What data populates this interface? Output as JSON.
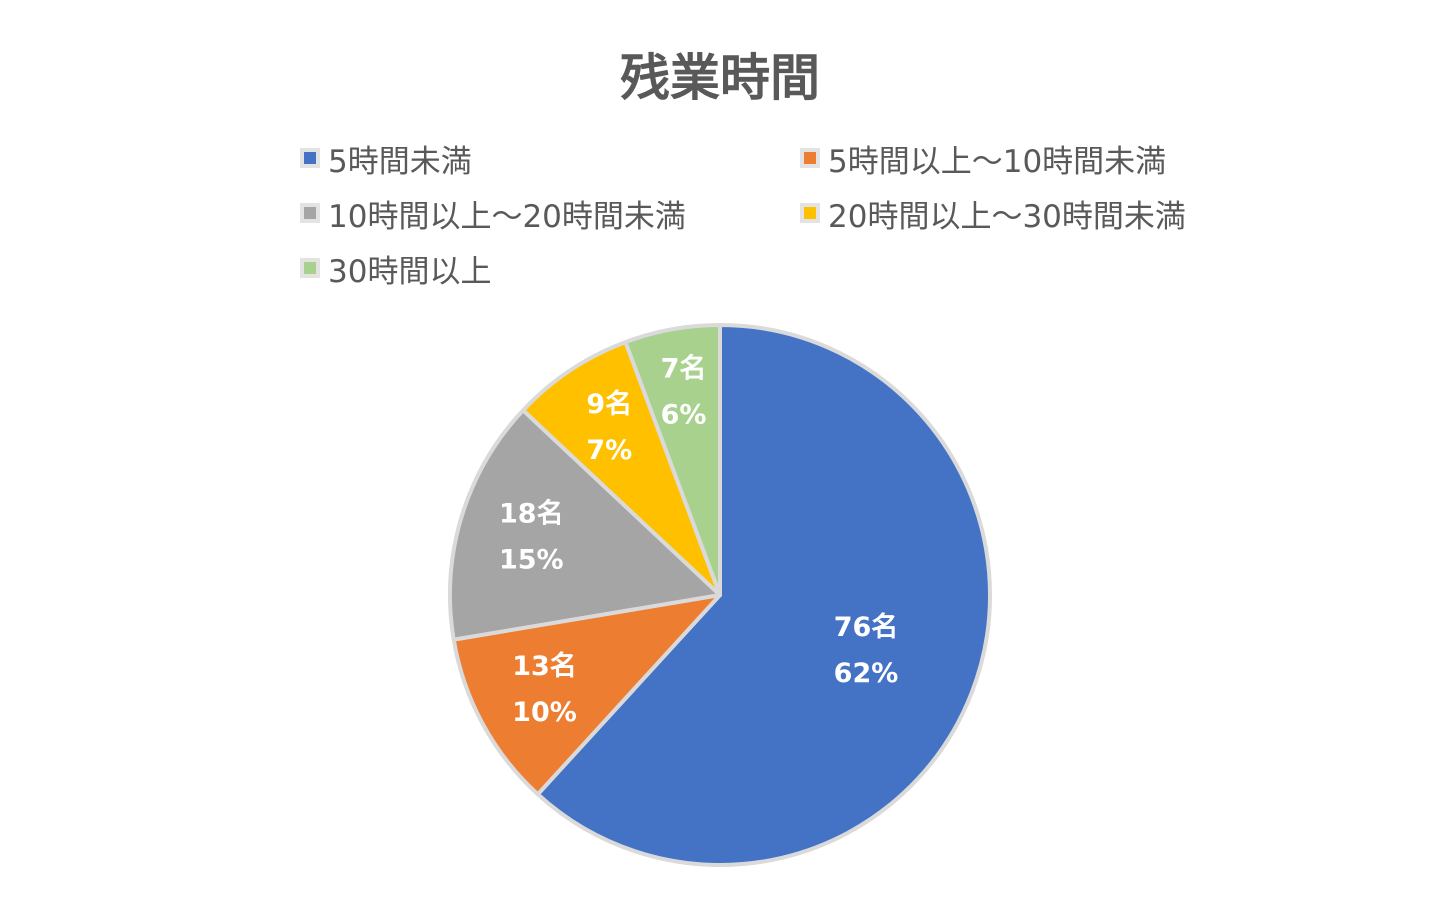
{
  "chart_data": {
    "type": "pie",
    "title": "残業時間",
    "categories": [
      "5時間未満",
      "5時間以上～10時間未満",
      "10時間以上～20時間未満",
      "20時間以上～30時間未満",
      "30時間以上"
    ],
    "values": [
      76,
      13,
      18,
      9,
      7
    ],
    "data_labels": [
      {
        "count": "76名",
        "percent": "62%"
      },
      {
        "count": "13名",
        "percent": "10%"
      },
      {
        "count": "18名",
        "percent": "15%"
      },
      {
        "count": "9名",
        "percent": "7%"
      },
      {
        "count": "7名",
        "percent": "6%"
      }
    ],
    "colors": [
      "#4472c4",
      "#ed7d31",
      "#a5a5a5",
      "#ffc000",
      "#a9d18e"
    ],
    "legend_position": "top",
    "start_angle": "12 o'clock",
    "direction": "clockwise"
  }
}
